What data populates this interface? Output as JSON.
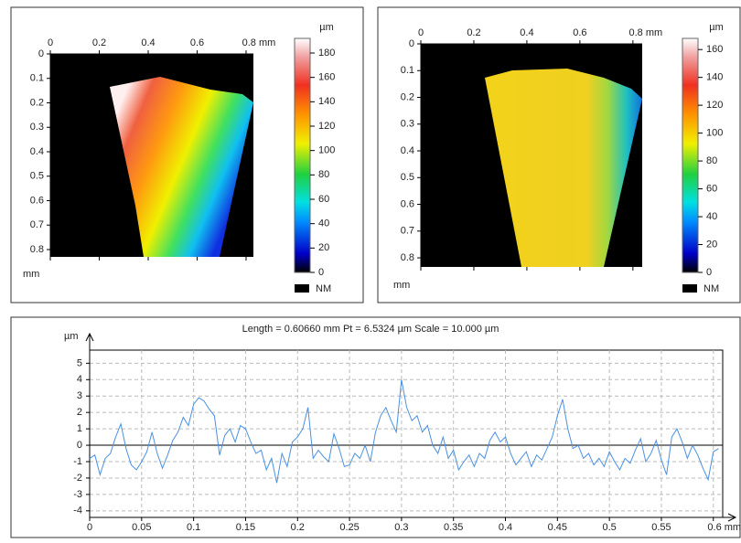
{
  "chart_data": [
    {
      "type": "heatmap",
      "xlim": [
        0,
        0.83
      ],
      "ylim": [
        0,
        0.83
      ],
      "xticks": [
        0,
        0.2,
        0.4,
        0.6,
        {
          "value": 0.8,
          "label": "0.8 mm"
        }
      ],
      "yticks": [
        0,
        0.1,
        0.2,
        0.3,
        0.4,
        0.5,
        0.6,
        0.7,
        0.8
      ],
      "y_label": "mm",
      "clim": [
        0,
        192
      ],
      "cticks": [
        0,
        20,
        40,
        60,
        80,
        100,
        120,
        140,
        160,
        180
      ],
      "colorbar_label": "µm",
      "missing_label": "NM",
      "missing_color": "#000000"
    },
    {
      "type": "heatmap",
      "xlim": [
        0,
        0.835
      ],
      "ylim": [
        0,
        0.834
      ],
      "xticks": [
        0,
        0.2,
        0.4,
        0.6,
        {
          "value": 0.8,
          "label": "0.8 mm"
        }
      ],
      "yticks": [
        0,
        0.1,
        0.2,
        0.3,
        0.4,
        0.5,
        0.6,
        0.7,
        0.8
      ],
      "y_label": "mm",
      "clim": [
        0,
        168
      ],
      "cticks": [
        0,
        20,
        40,
        60,
        80,
        100,
        120,
        140,
        160
      ],
      "colorbar_label": "µm",
      "missing_label": "NM",
      "missing_color": "#000000"
    },
    {
      "type": "line",
      "title": "Length = 0.60660 mm  Pt = 6.5324 µm  Scale = 10.000 µm",
      "y_label": "µm",
      "color": "#4a90e2",
      "grid": true,
      "xlim": [
        0,
        0.609
      ],
      "ylim": [
        -4.4,
        5.8
      ],
      "xticks": [
        0,
        0.05,
        0.1,
        0.15,
        0.2,
        0.25,
        0.3,
        0.35,
        0.4,
        0.45,
        0.5,
        0.55,
        {
          "value": 0.6,
          "label": "0.6 mm"
        }
      ],
      "yticks": [
        -4,
        -3,
        -2,
        -1,
        0,
        1,
        2,
        3,
        4,
        5
      ],
      "x": [
        0,
        0.005,
        0.01,
        0.015,
        0.02,
        0.025,
        0.03,
        0.035,
        0.04,
        0.045,
        0.05,
        0.055,
        0.06,
        0.065,
        0.07,
        0.075,
        0.08,
        0.085,
        0.09,
        0.095,
        0.1,
        0.105,
        0.11,
        0.115,
        0.12,
        0.125,
        0.13,
        0.135,
        0.14,
        0.145,
        0.15,
        0.155,
        0.16,
        0.165,
        0.17,
        0.175,
        0.18,
        0.185,
        0.19,
        0.195,
        0.2,
        0.205,
        0.21,
        0.215,
        0.22,
        0.225,
        0.23,
        0.235,
        0.24,
        0.245,
        0.25,
        0.255,
        0.26,
        0.265,
        0.27,
        0.275,
        0.28,
        0.285,
        0.29,
        0.295,
        0.3,
        0.305,
        0.31,
        0.315,
        0.32,
        0.325,
        0.33,
        0.335,
        0.34,
        0.345,
        0.35,
        0.355,
        0.36,
        0.365,
        0.37,
        0.375,
        0.38,
        0.385,
        0.39,
        0.395,
        0.4,
        0.405,
        0.41,
        0.415,
        0.42,
        0.425,
        0.43,
        0.435,
        0.44,
        0.445,
        0.45,
        0.455,
        0.46,
        0.465,
        0.47,
        0.475,
        0.48,
        0.485,
        0.49,
        0.495,
        0.5,
        0.505,
        0.51,
        0.515,
        0.52,
        0.525,
        0.53,
        0.535,
        0.54,
        0.545,
        0.55,
        0.555,
        0.56,
        0.565,
        0.57,
        0.575,
        0.58,
        0.585,
        0.59,
        0.595,
        0.6,
        0.605
      ],
      "values": [
        -0.8,
        -0.6,
        -1.8,
        -0.8,
        -0.5,
        0.5,
        1.3,
        -0.2,
        -1.2,
        -1.5,
        -1.0,
        -0.4,
        0.8,
        -0.5,
        -1.4,
        -0.6,
        0.3,
        0.8,
        1.7,
        1.2,
        2.5,
        2.9,
        2.7,
        2.2,
        1.8,
        -0.6,
        0.6,
        1.0,
        0.2,
        1.2,
        1.0,
        0.2,
        -0.5,
        -0.3,
        -1.5,
        -0.8,
        -2.3,
        -0.5,
        -1.3,
        0.2,
        0.5,
        1.0,
        2.3,
        -0.8,
        -0.3,
        -0.7,
        -1.0,
        0.7,
        -0.2,
        -1.3,
        -1.2,
        -0.5,
        -0.8,
        0.0,
        -1.0,
        0.8,
        1.8,
        2.3,
        1.5,
        0.8,
        4.0,
        2.3,
        1.5,
        1.8,
        0.8,
        1.2,
        0.0,
        -0.5,
        0.5,
        -0.8,
        -0.3,
        -1.5,
        -1.0,
        -0.6,
        -1.3,
        -0.5,
        -0.8,
        0.3,
        0.8,
        0.2,
        0.5,
        -0.5,
        -1.2,
        -0.8,
        -0.4,
        -1.3,
        -0.6,
        -0.9,
        -0.2,
        0.5,
        1.8,
        2.8,
        1.0,
        -0.2,
        0.0,
        -0.8,
        -0.5,
        -1.2,
        -0.8,
        -1.3,
        -0.4,
        -1.0,
        -1.5,
        -0.8,
        -1.1,
        -0.3,
        0.4,
        -1.0,
        -0.5,
        0.3,
        -0.9,
        -1.8,
        0.5,
        1.0,
        0.2,
        -0.8,
        0.0,
        -0.6,
        -1.4,
        -2.1,
        -0.4,
        -0.2
      ]
    }
  ]
}
